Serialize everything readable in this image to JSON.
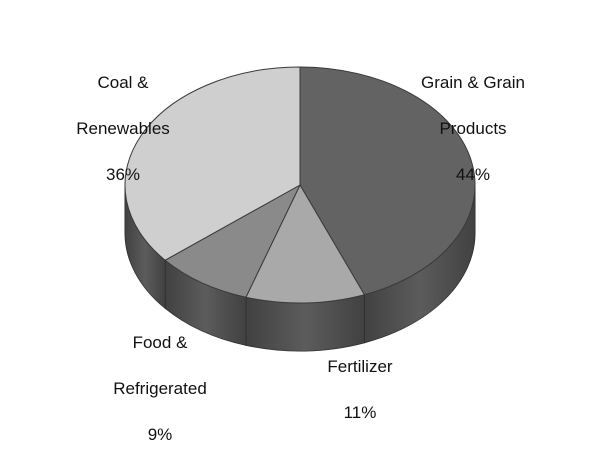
{
  "chart_data": {
    "type": "pie",
    "three_d": true,
    "slices": [
      {
        "label": "Grain & Grain Products",
        "label_lines": [
          "Grain & Grain",
          "Products"
        ],
        "percent_text": "44%",
        "value": 44,
        "color": "#636363"
      },
      {
        "label": "Fertilizer",
        "label_lines": [
          "Fertilizer"
        ],
        "percent_text": "11%",
        "value": 11,
        "color": "#a9a9a9"
      },
      {
        "label": "Food & Refrigerated",
        "label_lines": [
          "Food &",
          "Refrigerated"
        ],
        "percent_text": "9%",
        "value": 9,
        "color": "#8a8a8a"
      },
      {
        "label": "Coal & Renewables",
        "label_lines": [
          "Coal &",
          "Renewables"
        ],
        "percent_text": "36%",
        "value": 36,
        "color": "#cfcfcf"
      }
    ],
    "legend": "none"
  }
}
